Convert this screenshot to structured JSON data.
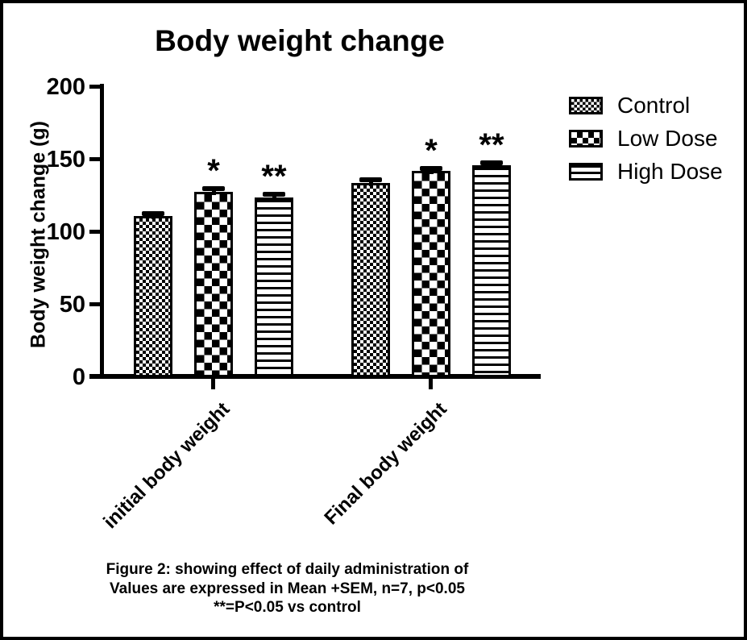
{
  "chart_data": {
    "type": "bar",
    "title": "Body weight change",
    "ylabel": "Body weight change (g)",
    "xlabel": "",
    "categories": [
      "initial body weight",
      "Final body weight"
    ],
    "series": [
      {
        "name": "Control",
        "pattern": "fine-checker",
        "values": [
          111,
          134
        ],
        "sem": [
          2,
          2
        ],
        "significance": [
          "",
          ""
        ]
      },
      {
        "name": "Low Dose",
        "pattern": "coarse-checker",
        "values": [
          128,
          142
        ],
        "sem": [
          2,
          2
        ],
        "significance": [
          "*",
          "*"
        ]
      },
      {
        "name": "High Dose",
        "pattern": "horizontal-lines",
        "values": [
          124,
          146
        ],
        "sem": [
          2,
          2
        ],
        "significance": [
          "**",
          "**"
        ]
      }
    ],
    "ylim": [
      0,
      200
    ],
    "yticks": [
      0,
      50,
      100,
      150,
      200
    ],
    "legend_position": "top-right",
    "grid": false,
    "bar_color": "#000000",
    "background": "#ffffff"
  },
  "caption": {
    "lines": [
      "Figure 2: showing effect of daily administration of",
      "Values are expressed in Mean +SEM,  n=7, p<0.05",
      "**=P<0.05 vs control"
    ]
  }
}
